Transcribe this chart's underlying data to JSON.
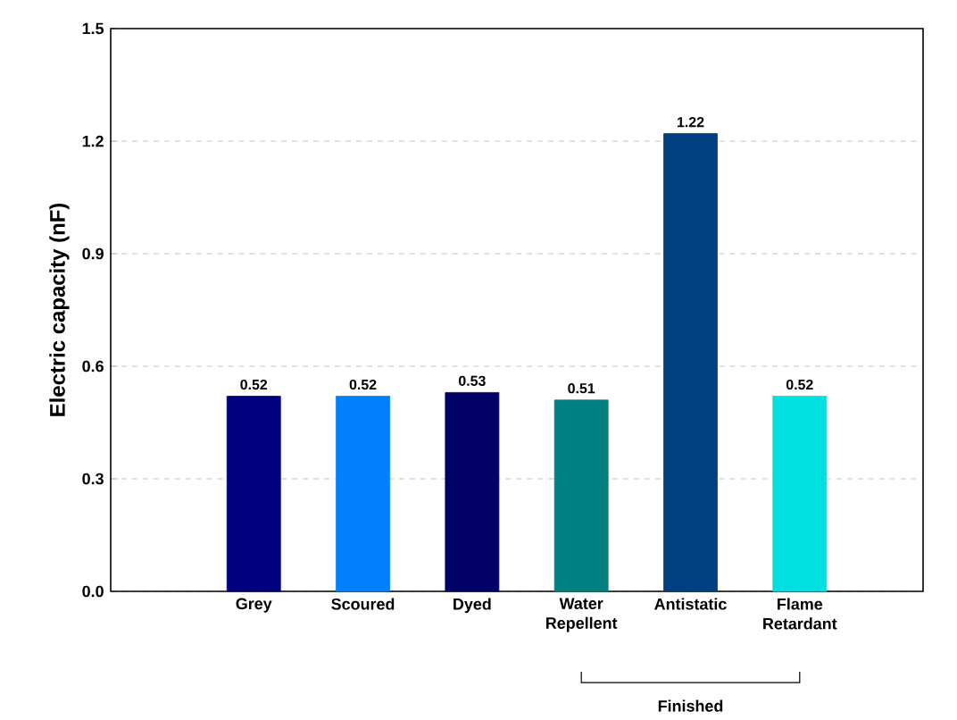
{
  "chart_data": {
    "type": "bar",
    "ylabel": "Electric capacity (nF)",
    "categories": [
      "Grey",
      "Scoured",
      "Dyed",
      "Water Repellent",
      "Antistatic",
      "Flame Retardant"
    ],
    "values": [
      0.52,
      0.52,
      0.53,
      0.51,
      1.22,
      0.52
    ],
    "colors": [
      "#000080",
      "#0080ff",
      "#000066",
      "#008080",
      "#004080",
      "#00e0e0"
    ],
    "ylim": [
      0,
      1.5
    ],
    "yticks": [
      {
        "value": 0,
        "label": "0.0"
      },
      {
        "value": 0.3,
        "label": "0.3"
      },
      {
        "value": 0.6,
        "label": "0.6"
      },
      {
        "value": 0.9,
        "label": "0.9"
      },
      {
        "value": 1.2,
        "label": "1.2"
      },
      {
        "value": 1.5,
        "label": "1.5"
      }
    ],
    "grid": "y",
    "data_labels": true,
    "annotations": [
      "Finished"
    ]
  }
}
